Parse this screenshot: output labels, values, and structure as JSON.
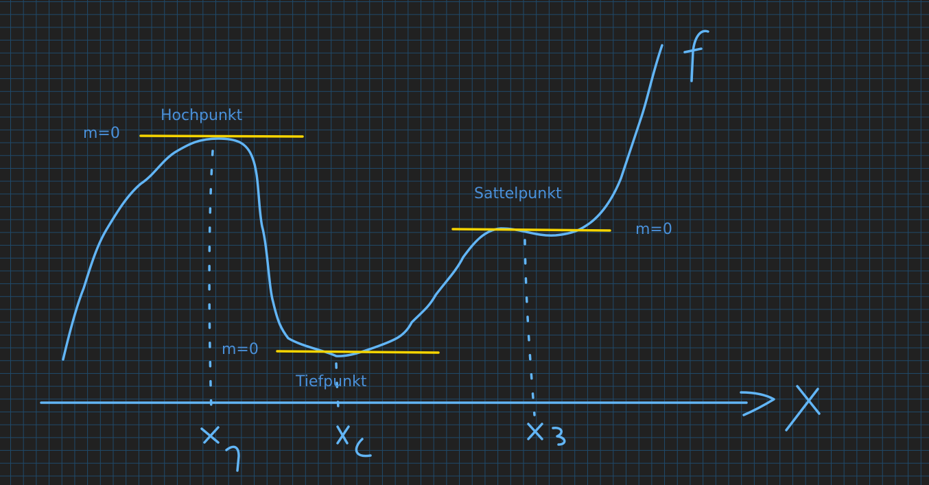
{
  "colors": {
    "background": "#212121",
    "grid": "#1f4a6b",
    "curve": "#62b5f5",
    "tangent": "#f5d400",
    "label_text": "#4a90d9"
  },
  "labels": {
    "maximum": "Hochpunkt",
    "minimum": "Tiefpunkt",
    "saddle": "Sattelpunkt",
    "slope_max": "m=0",
    "slope_min": "m=0",
    "slope_saddle": "m=0"
  },
  "handwriting": {
    "function_name": "f",
    "axis_name": "X",
    "x1": "x1",
    "x2": "x2",
    "x3": "x3"
  }
}
